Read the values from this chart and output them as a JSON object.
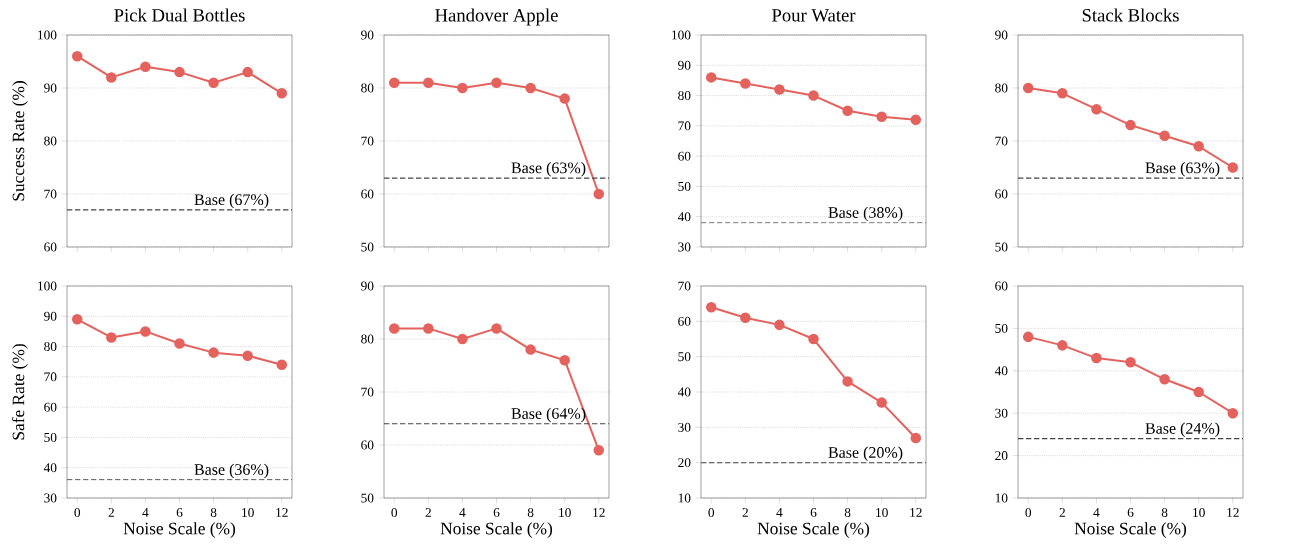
{
  "chart_data": [
    {
      "type": "line",
      "title": "Pick Dual Bottles",
      "ylabel": "Success Rate (%)",
      "x": [
        0,
        2,
        4,
        6,
        8,
        10,
        12
      ],
      "series": [
        {
          "color": "#e4625d",
          "values": [
            96,
            92,
            94,
            93,
            91,
            93,
            89
          ]
        }
      ],
      "xlim": [
        -0.6,
        12.6
      ],
      "xticks": [
        0,
        2,
        4,
        6,
        8,
        10,
        12
      ],
      "ylim": [
        60,
        100
      ],
      "yticks": [
        60,
        70,
        80,
        90,
        100
      ],
      "ref_lines": [
        {
          "axis": "y",
          "value": 67,
          "label": "Base (67%)",
          "color": "#444444",
          "line_style": "dashed"
        }
      ],
      "grid": "y",
      "marker": "circle",
      "line_style": "solid",
      "tick_labels": "y"
    },
    {
      "type": "line",
      "title": "Handover Apple",
      "x": [
        0,
        2,
        4,
        6,
        8,
        10,
        12
      ],
      "series": [
        {
          "color": "#e4625d",
          "values": [
            81,
            81,
            80,
            81,
            80,
            78,
            60
          ]
        }
      ],
      "xlim": [
        -0.6,
        12.6
      ],
      "xticks": [
        0,
        2,
        4,
        6,
        8,
        10,
        12
      ],
      "ylim": [
        50,
        90
      ],
      "yticks": [
        50,
        60,
        70,
        80,
        90
      ],
      "ref_lines": [
        {
          "axis": "y",
          "value": 63,
          "label": "Base (63%)",
          "color": "#444444",
          "line_style": "dashed"
        }
      ],
      "grid": "y",
      "marker": "circle",
      "line_style": "solid",
      "tick_labels": "y"
    },
    {
      "type": "line",
      "title": "Pour Water",
      "x": [
        0,
        2,
        4,
        6,
        8,
        10,
        12
      ],
      "series": [
        {
          "color": "#e4625d",
          "values": [
            86,
            84,
            82,
            80,
            75,
            73,
            72
          ]
        }
      ],
      "xlim": [
        -0.6,
        12.6
      ],
      "xticks": [
        0,
        2,
        4,
        6,
        8,
        10,
        12
      ],
      "ylim": [
        30,
        100
      ],
      "yticks": [
        30,
        40,
        50,
        60,
        70,
        80,
        90,
        100
      ],
      "ref_lines": [
        {
          "axis": "y",
          "value": 38,
          "label": "Base (38%)",
          "color": "#444444",
          "line_style": "dashed"
        }
      ],
      "grid": "y",
      "marker": "circle",
      "line_style": "solid",
      "tick_labels": "y"
    },
    {
      "type": "line",
      "title": "Stack Blocks",
      "x": [
        0,
        2,
        4,
        6,
        8,
        10,
        12
      ],
      "series": [
        {
          "color": "#e4625d",
          "values": [
            80,
            79,
            76,
            73,
            71,
            69,
            65
          ]
        }
      ],
      "xlim": [
        -0.6,
        12.6
      ],
      "xticks": [
        0,
        2,
        4,
        6,
        8,
        10,
        12
      ],
      "ylim": [
        50,
        90
      ],
      "yticks": [
        50,
        60,
        70,
        80,
        90
      ],
      "ref_lines": [
        {
          "axis": "y",
          "value": 63,
          "label": "Base (63%)",
          "color": "#444444",
          "line_style": "dashed"
        }
      ],
      "grid": "y",
      "marker": "circle",
      "line_style": "solid",
      "tick_labels": "y"
    },
    {
      "type": "line",
      "xlabel": "Noise Scale (%)",
      "ylabel": "Safe Rate (%)",
      "x": [
        0,
        2,
        4,
        6,
        8,
        10,
        12
      ],
      "series": [
        {
          "color": "#e4625d",
          "values": [
            89,
            83,
            85,
            81,
            78,
            77,
            74
          ]
        }
      ],
      "xlim": [
        -0.6,
        12.6
      ],
      "xticks": [
        0,
        2,
        4,
        6,
        8,
        10,
        12
      ],
      "ylim": [
        30,
        100
      ],
      "yticks": [
        30,
        40,
        50,
        60,
        70,
        80,
        90,
        100
      ],
      "ref_lines": [
        {
          "axis": "y",
          "value": 36,
          "label": "Base (36%)",
          "color": "#444444",
          "line_style": "dashed"
        }
      ],
      "grid": "y",
      "marker": "circle",
      "line_style": "solid"
    },
    {
      "type": "line",
      "xlabel": "Noise Scale (%)",
      "x": [
        0,
        2,
        4,
        6,
        8,
        10,
        12
      ],
      "series": [
        {
          "color": "#e4625d",
          "values": [
            82,
            82,
            80,
            82,
            78,
            76,
            59
          ]
        }
      ],
      "xlim": [
        -0.6,
        12.6
      ],
      "xticks": [
        0,
        2,
        4,
        6,
        8,
        10,
        12
      ],
      "ylim": [
        50,
        90
      ],
      "yticks": [
        50,
        60,
        70,
        80,
        90
      ],
      "ref_lines": [
        {
          "axis": "y",
          "value": 64,
          "label": "Base (64%)",
          "color": "#444444",
          "line_style": "dashed"
        }
      ],
      "grid": "y",
      "marker": "circle",
      "line_style": "solid"
    },
    {
      "type": "line",
      "xlabel": "Noise Scale (%)",
      "x": [
        0,
        2,
        4,
        6,
        8,
        10,
        12
      ],
      "series": [
        {
          "color": "#e4625d",
          "values": [
            64,
            61,
            59,
            55,
            43,
            37,
            27
          ]
        }
      ],
      "xlim": [
        -0.6,
        12.6
      ],
      "xticks": [
        0,
        2,
        4,
        6,
        8,
        10,
        12
      ],
      "ylim": [
        10,
        70
      ],
      "yticks": [
        10,
        20,
        30,
        40,
        50,
        60,
        70
      ],
      "ref_lines": [
        {
          "axis": "y",
          "value": 20,
          "label": "Base (20%)",
          "color": "#444444",
          "line_style": "dashed"
        }
      ],
      "grid": "y",
      "marker": "circle",
      "line_style": "solid"
    },
    {
      "type": "line",
      "xlabel": "Noise Scale (%)",
      "x": [
        0,
        2,
        4,
        6,
        8,
        10,
        12
      ],
      "series": [
        {
          "color": "#e4625d",
          "values": [
            48,
            46,
            43,
            42,
            38,
            35,
            30
          ]
        }
      ],
      "xlim": [
        -0.6,
        12.6
      ],
      "xticks": [
        0,
        2,
        4,
        6,
        8,
        10,
        12
      ],
      "ylim": [
        10,
        60
      ],
      "yticks": [
        10,
        20,
        30,
        40,
        50,
        60
      ],
      "ref_lines": [
        {
          "axis": "y",
          "value": 24,
          "label": "Base (24%)",
          "color": "#444444",
          "line_style": "dashed"
        }
      ],
      "grid": "y",
      "marker": "circle",
      "line_style": "solid"
    }
  ]
}
